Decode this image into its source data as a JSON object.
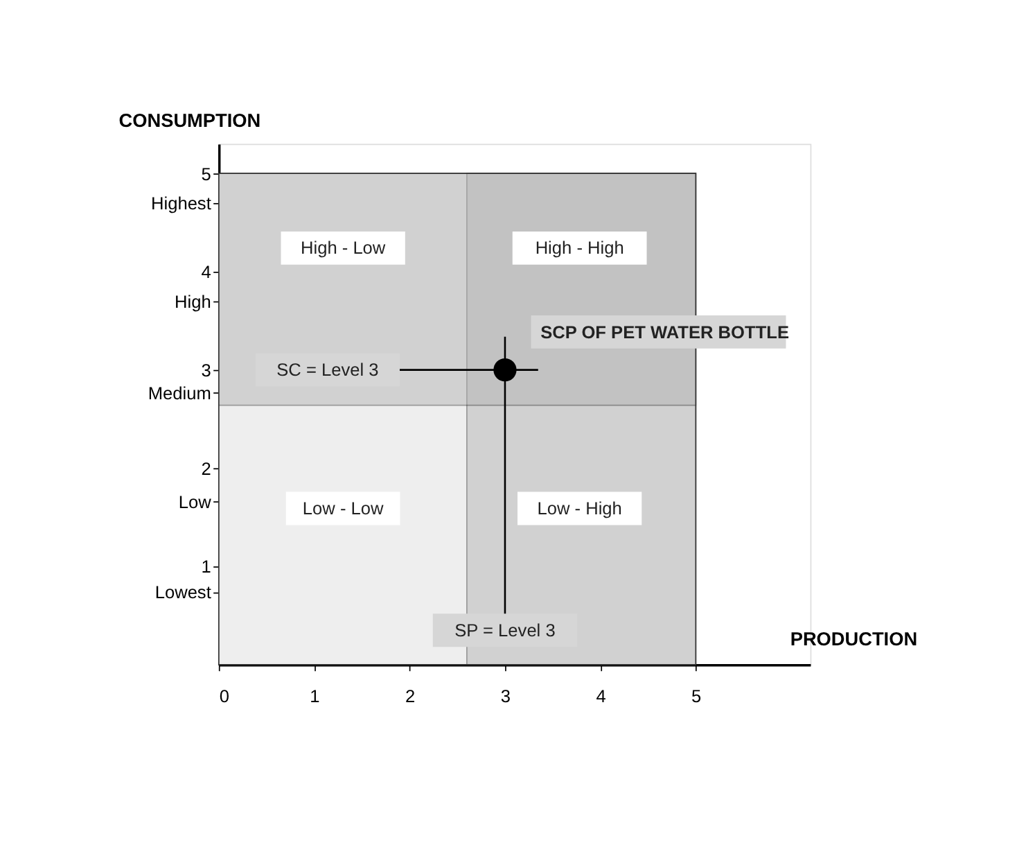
{
  "chart_data": {
    "type": "scatter",
    "xlabel": "PRODUCTION",
    "ylabel": "CONSUMPTION",
    "x": [
      3
    ],
    "values": [
      3
    ],
    "color": "#000000",
    "marker": "circle",
    "xlim": [
      0,
      6.2
    ],
    "ylim": [
      0,
      5.3
    ],
    "xticks": [
      {
        "value": 0,
        "label": "0"
      },
      1,
      2,
      3,
      4,
      5
    ],
    "yticks": [
      1,
      2,
      3,
      4,
      5,
      {
        "value": 0.74,
        "label": "Lowest"
      },
      {
        "value": 1.66,
        "label": "Low"
      },
      {
        "value": 2.77,
        "label": "Medium"
      },
      {
        "value": 3.7,
        "label": "High"
      },
      {
        "value": 4.7,
        "label": "Highest"
      }
    ],
    "bands": [
      {
        "axis": "x",
        "from": 0,
        "to": 5,
        "color": "#eeeeee"
      },
      {
        "axis": "x",
        "from": 2.6,
        "to": 5,
        "color": "#b0b0b0"
      },
      {
        "axis": "y",
        "from": 2.64,
        "to": 5,
        "color": "#b0b0b0"
      }
    ],
    "annotations": [
      "High - Low",
      "High - High",
      "Low - Low",
      "Low - High",
      {
        "text": "SCP OF PET WATER BOTTLE",
        "x": 3,
        "y": 3
      },
      "SC = Level 3",
      "SP = Level 3"
    ],
    "grid": false
  }
}
